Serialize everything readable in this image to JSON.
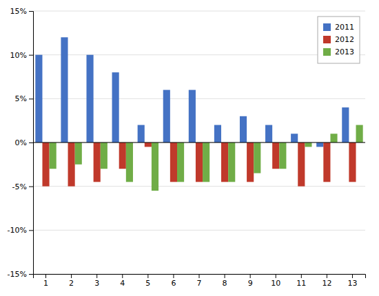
{
  "chart_data": {
    "type": "bar",
    "categories": [
      "1",
      "2",
      "3",
      "4",
      "5",
      "6",
      "7",
      "8",
      "9",
      "10",
      "11",
      "12",
      "13"
    ],
    "series": [
      {
        "name": "2011",
        "color": "#4472C4",
        "values": [
          10,
          12,
          10,
          8,
          2,
          6,
          6,
          2,
          3,
          2,
          1,
          -0.5,
          4
        ]
      },
      {
        "name": "2012",
        "color": "#C0392B",
        "values": [
          -5,
          -5,
          -4.5,
          -3,
          -0.5,
          -4.5,
          -4.5,
          -4.5,
          -4.5,
          -3,
          -5,
          -4.5,
          -4.5
        ]
      },
      {
        "name": "2013",
        "color": "#70AD47",
        "values": [
          -3,
          -2.5,
          -3,
          -4.5,
          -5.5,
          -4.5,
          -4.5,
          -4.5,
          -3.5,
          -3,
          -0.5,
          1,
          2
        ]
      }
    ],
    "ylim": [
      -15,
      15
    ],
    "yticks": [
      {
        "value": -15,
        "label": "-15%"
      },
      {
        "value": -10,
        "label": "-10%"
      },
      {
        "value": -5,
        "label": "-5%"
      },
      {
        "value": 0,
        "label": "0%"
      },
      {
        "value": 5,
        "label": "5%"
      },
      {
        "value": 10,
        "label": "10%"
      },
      {
        "value": 15,
        "label": "15%"
      }
    ],
    "grid": true,
    "legend": "upper right"
  }
}
